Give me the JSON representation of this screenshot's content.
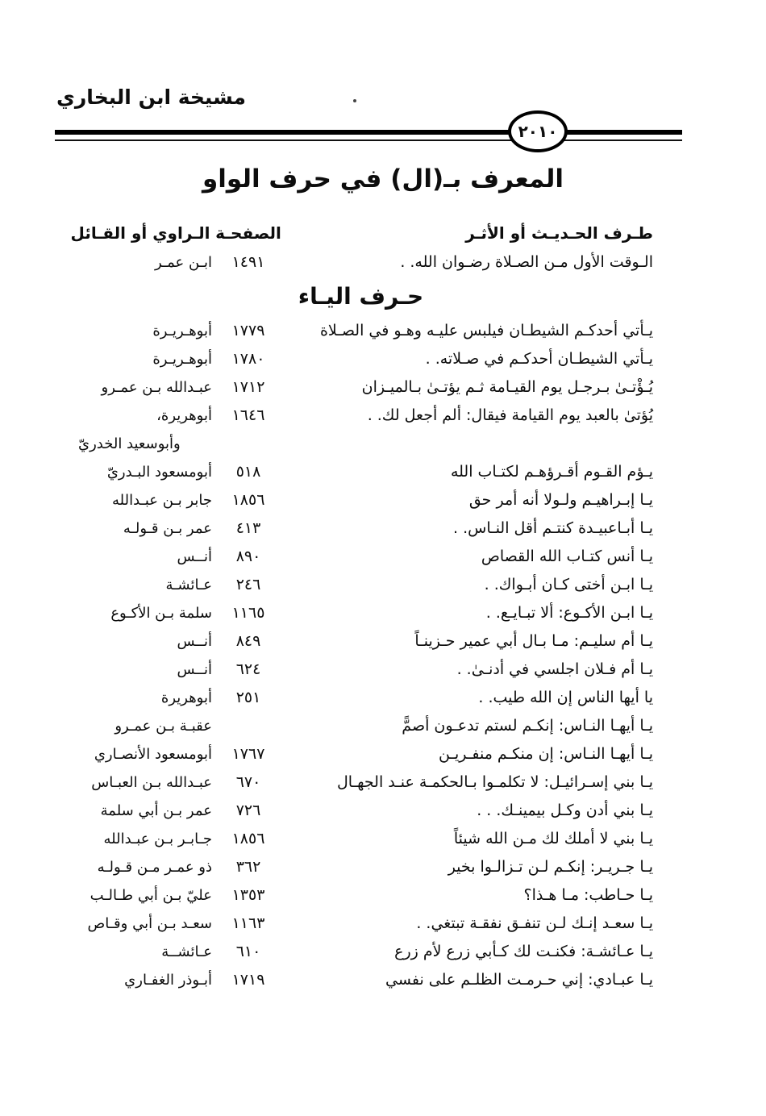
{
  "masthead": {
    "book_title": "مشيخة ابن البخاري",
    "page_badge": "٢٠١٠"
  },
  "title": "المعرف بـ(ال) في حرف الواو",
  "table": {
    "headers": {
      "hadith": "طـرف الحـديـث أو الأثـر",
      "page": "الصفحـة",
      "narrator": "الـراوي أو القـائل"
    },
    "intro_rows": [
      {
        "hadith": "الـوقت الأول مـن الصـلاة رضـوان الله. .",
        "page": "١٤٩١",
        "narrator": "ابـن عمـر"
      }
    ],
    "section_heading": "حـرف اليـاء",
    "rows": [
      {
        "hadith": "يـأتي أحدكـم الشيطـان فيلبس عليـه وهـو في الصـلاة",
        "page": "١٧٧٩",
        "narrator": "أبوهـريـرة"
      },
      {
        "hadith": "يـأتي الشيطـان أحدكـم في صـلاته. .",
        "page": "١٧٨٠",
        "narrator": "أبوهـريـرة"
      },
      {
        "hadith": "يُـؤْتـىٰ بـرجـل يوم القيـامة ثـم يؤتـىٰ بـالميـزان",
        "page": "١٧١٢",
        "narrator": "عبـدالله بـن عمـرو"
      },
      {
        "hadith": "يُؤتىٰ بالعبد يوم القيامة فيقال: ألم أجعل لك. .",
        "page": "١٦٤٦",
        "narrator": "أبوهريرة،",
        "narrator_cont": "وأبوسعيد الخدريّ"
      },
      {
        "hadith": "يـؤم القـوم أقـرؤهـم لكتـاب الله",
        "page": "٥١٨",
        "narrator": "أبومسعود البـدريّ"
      },
      {
        "hadith": "يـا إبـراهيـم ولـولا أنه أمر حق",
        "page": "١٨٥٦",
        "narrator": "جابر بـن عبـدالله"
      },
      {
        "hadith": "يـا أبـاعبيـدة كنتـم أقل النـاس. .",
        "page": "٤١٣",
        "narrator": "عمر بـن قـولـه"
      },
      {
        "hadith": "يـا أنس كتـاب الله القصاص",
        "page": "٨٩٠",
        "narrator": "أنــس"
      },
      {
        "hadith": "يـا ابـن أختى كـان أبـواك. .",
        "page": "٢٤٦",
        "narrator": "عـائشـة"
      },
      {
        "hadith": "يـا ابـن الأكـوع: ألا تبـايـع. .",
        "page": "١١٦٥",
        "narrator": "سلمة بـن الأكـوع"
      },
      {
        "hadith": "يـا أم سليـم: مـا بـال أبي عمير حـزينـاً",
        "page": "٨٤٩",
        "narrator": "أنــس"
      },
      {
        "hadith": "يـا أم فـلان اجلسي في أدنـىٰ. .",
        "page": "٦٢٤",
        "narrator": "أنــس"
      },
      {
        "hadith": "يا أيها الناس إن الله طيب. .",
        "page": "٢٥١",
        "narrator": "أبوهريرة"
      },
      {
        "hadith": "يـا أيهـا النـاس: إنكـم لستم تدعـون أصمًّ",
        "page": "",
        "narrator": "عقبـة بـن عمـرو"
      },
      {
        "hadith": "يـا أيهـا النـاس: إن منكـم منفـريـن",
        "page": "١٧٦٧",
        "narrator": "أبومسعود الأنصـاري"
      },
      {
        "hadith": "يـا بني إسـرائيـل: لا تكلمـوا بـالحكمـة عنـد الجهـال",
        "page": "٦٧٠",
        "narrator": "عبـدالله بـن العبـاس"
      },
      {
        "hadith": "يـا بني أدن وكـل بيمينـك. . .",
        "page": "٧٢٦",
        "narrator": "عمر بـن أبي سلمة"
      },
      {
        "hadith": "يـا بني لا أملك لك مـن الله شيئاً",
        "page": "١٨٥٦",
        "narrator": "جـابـر بـن عبـدالله"
      },
      {
        "hadith": "يـا جـريـر: إنكـم لـن تـزالـوا بخير",
        "page": "٣٦٢",
        "narrator": "ذو عمـر مـن قـولـه"
      },
      {
        "hadith": "يـا حـاطب: مـا هـذا؟",
        "page": "١٣٥٣",
        "narrator": "عليّ بـن أبي طـالـب"
      },
      {
        "hadith": "يـا سعـد إنـك لـن تنفـق نفقـة تبتغي. .",
        "page": "١١٦٣",
        "narrator": "سعـد بـن أبي وقـاص"
      },
      {
        "hadith": "يـا عـائشـة: فكنـت لك كـأبي زرع لأم زرع",
        "page": "٦١٠",
        "narrator": "عـائشــة"
      },
      {
        "hadith": "يـا عبـادي: إني حـرمـت الظلـم على نفسي",
        "page": "١٧١٩",
        "narrator": "أبـوذر الغفـاري"
      }
    ]
  }
}
